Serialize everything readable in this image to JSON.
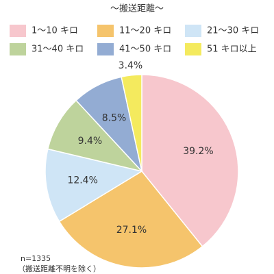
{
  "chart_data": {
    "type": "pie",
    "title": "～搬送距離～",
    "categories": [
      "1～10 キロ",
      "11～20 キロ",
      "21～30 キロ",
      "31～40 キロ",
      "41～50 キロ",
      "51 キロ以上"
    ],
    "values": [
      39.2,
      27.1,
      12.4,
      9.4,
      8.5,
      3.4
    ],
    "value_labels": [
      "39.2%",
      "27.1%",
      "12.4%",
      "9.4%",
      "8.5%",
      "3.4%"
    ],
    "colors": [
      "#f7c7cd",
      "#f5c46c",
      "#cfe5f6",
      "#bed39c",
      "#93acd3",
      "#f4ea5e"
    ],
    "annotations": [
      "n=1335",
      "（搬送距離不明を除く）"
    ]
  }
}
